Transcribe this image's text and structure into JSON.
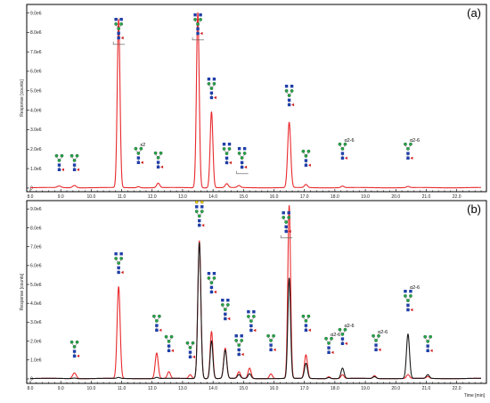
{
  "chart_data": [
    {
      "type": "line",
      "panel_label": "(a)",
      "ylabel": "Response [counts]",
      "xlabel": "",
      "xlim": [
        8.0,
        22.8
      ],
      "ylim": [
        -50000.0,
        9250000.0
      ],
      "x_ticks": [
        8.0,
        9.0,
        10.0,
        11.0,
        12.0,
        13.0,
        14.0,
        15.0,
        16.0,
        17.0,
        18.0,
        19.0,
        20.0,
        21.0,
        22.0
      ],
      "y_ticks": [
        {
          "v": 0,
          "label": "0"
        },
        {
          "v": 1000000,
          "label": "1.0e6"
        },
        {
          "v": 2000000,
          "label": "2.0e6"
        },
        {
          "v": 3000000,
          "label": "3.0e6"
        },
        {
          "v": 4000000,
          "label": "4.0e6"
        },
        {
          "v": 5000000,
          "label": "5.0e6"
        },
        {
          "v": 6000000,
          "label": "6.0e6"
        },
        {
          "v": 7000000,
          "label": "7.0e6"
        },
        {
          "v": 8000000,
          "label": "8.0e6"
        },
        {
          "v": 9000000,
          "label": "9.0e6"
        }
      ],
      "series": [
        {
          "color": "#e8292c",
          "peaks": [
            {
              "rt": 8.95,
              "height": 80000,
              "width": 0.06
            },
            {
              "rt": 9.45,
              "height": 120000,
              "width": 0.06
            },
            {
              "rt": 10.9,
              "height": 8650000,
              "width": 0.045
            },
            {
              "rt": 11.55,
              "height": 60000,
              "width": 0.05
            },
            {
              "rt": 12.2,
              "height": 230000,
              "width": 0.05
            },
            {
              "rt": 13.5,
              "height": 9000000,
              "width": 0.045
            },
            {
              "rt": 13.95,
              "height": 3900000,
              "width": 0.045
            },
            {
              "rt": 14.45,
              "height": 200000,
              "width": 0.05
            },
            {
              "rt": 14.85,
              "height": 100000,
              "width": 0.05
            },
            {
              "rt": 16.5,
              "height": 3350000,
              "width": 0.05
            },
            {
              "rt": 17.05,
              "height": 160000,
              "width": 0.05
            },
            {
              "rt": 18.25,
              "height": 80000,
              "width": 0.05
            },
            {
              "rt": 20.4,
              "height": 60000,
              "width": 0.05
            }
          ]
        }
      ],
      "glycan_labels": [
        "x2",
        "α2-6",
        "α2-6"
      ]
    },
    {
      "type": "line",
      "panel_label": "(b)",
      "ylabel": "Response [counts]",
      "xlabel": "Time [min]",
      "xlim": [
        8.0,
        22.8
      ],
      "ylim": [
        -50000.0,
        9250000.0
      ],
      "x_ticks": [
        8.0,
        9.0,
        10.0,
        11.0,
        12.0,
        13.0,
        14.0,
        15.0,
        16.0,
        17.0,
        18.0,
        19.0,
        20.0,
        21.0,
        22.0
      ],
      "y_ticks": [
        {
          "v": 0,
          "label": "0"
        },
        {
          "v": 1000000,
          "label": "1.0e6"
        },
        {
          "v": 2000000,
          "label": "2.0e6"
        },
        {
          "v": 3000000,
          "label": "3.0e6"
        },
        {
          "v": 4000000,
          "label": "4.0e6"
        },
        {
          "v": 5000000,
          "label": "5.0e6"
        },
        {
          "v": 6000000,
          "label": "6.0e6"
        },
        {
          "v": 7000000,
          "label": "7.0e6"
        },
        {
          "v": 8000000,
          "label": "8.0e6"
        },
        {
          "v": 9000000,
          "label": "9.0e6"
        }
      ],
      "series": [
        {
          "color": "#e8292c",
          "peaks": [
            {
              "rt": 9.45,
              "height": 300000,
              "width": 0.06
            },
            {
              "rt": 10.9,
              "height": 4850000,
              "width": 0.05
            },
            {
              "rt": 12.15,
              "height": 1350000,
              "width": 0.05
            },
            {
              "rt": 12.55,
              "height": 350000,
              "width": 0.05
            },
            {
              "rt": 13.25,
              "height": 200000,
              "width": 0.05
            },
            {
              "rt": 13.55,
              "height": 7300000,
              "width": 0.05
            },
            {
              "rt": 13.95,
              "height": 2500000,
              "width": 0.045
            },
            {
              "rt": 14.4,
              "height": 1600000,
              "width": 0.05
            },
            {
              "rt": 14.85,
              "height": 350000,
              "width": 0.05
            },
            {
              "rt": 15.2,
              "height": 550000,
              "width": 0.05
            },
            {
              "rt": 15.9,
              "height": 250000,
              "width": 0.05
            },
            {
              "rt": 16.5,
              "height": 9150000,
              "width": 0.045
            },
            {
              "rt": 17.05,
              "height": 1250000,
              "width": 0.05
            },
            {
              "rt": 17.8,
              "height": 100000,
              "width": 0.05
            },
            {
              "rt": 18.25,
              "height": 200000,
              "width": 0.05
            },
            {
              "rt": 19.3,
              "height": 150000,
              "width": 0.05
            },
            {
              "rt": 20.4,
              "height": 200000,
              "width": 0.05
            },
            {
              "rt": 21.05,
              "height": 100000,
              "width": 0.05
            }
          ]
        },
        {
          "color": "#1a1a1a",
          "peaks": [
            {
              "rt": 9.45,
              "height": 30000,
              "width": 0.06
            },
            {
              "rt": 10.9,
              "height": 50000,
              "width": 0.05
            },
            {
              "rt": 12.15,
              "height": 60000,
              "width": 0.05
            },
            {
              "rt": 13.55,
              "height": 7200000,
              "width": 0.05
            },
            {
              "rt": 13.95,
              "height": 2000000,
              "width": 0.045
            },
            {
              "rt": 14.4,
              "height": 1500000,
              "width": 0.05
            },
            {
              "rt": 14.85,
              "height": 200000,
              "width": 0.05
            },
            {
              "rt": 15.2,
              "height": 250000,
              "width": 0.05
            },
            {
              "rt": 16.5,
              "height": 5300000,
              "width": 0.045
            },
            {
              "rt": 17.05,
              "height": 800000,
              "width": 0.05
            },
            {
              "rt": 17.8,
              "height": 60000,
              "width": 0.05
            },
            {
              "rt": 18.25,
              "height": 550000,
              "width": 0.05
            },
            {
              "rt": 19.3,
              "height": 100000,
              "width": 0.05
            },
            {
              "rt": 20.4,
              "height": 2350000,
              "width": 0.05
            },
            {
              "rt": 21.05,
              "height": 200000,
              "width": 0.05
            }
          ]
        }
      ],
      "glycan_labels": [
        "α2-6",
        "α2-6",
        "α2-6",
        "α2-6"
      ]
    }
  ]
}
